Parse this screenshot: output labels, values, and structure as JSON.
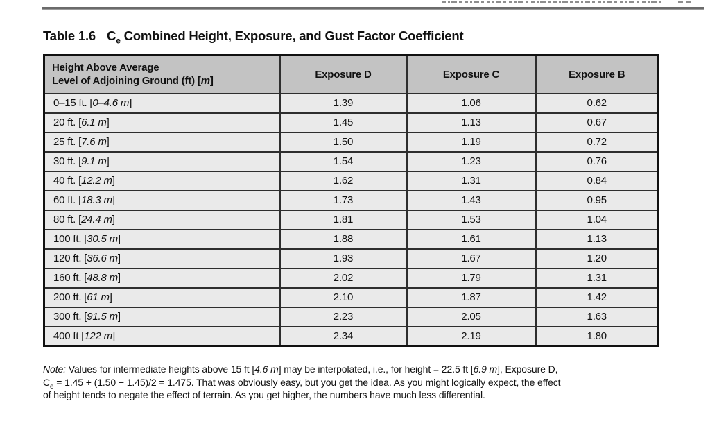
{
  "title": {
    "label": "Table 1.6",
    "symbol_base": "C",
    "symbol_sub": "e",
    "text": "Combined Height, Exposure, and Gust Factor Coefficient"
  },
  "table": {
    "header": {
      "height_line1": "Height Above Average",
      "height_line2_pre": "Level of Adjoining Ground (ft) [",
      "height_line2_italic": "m",
      "height_line2_post": "]",
      "exposure_d": "Exposure D",
      "exposure_c": "Exposure C",
      "exposure_b": "Exposure B"
    },
    "rows": [
      {
        "height_pre": "0–15 ft. [",
        "height_italic": "0–4.6 m",
        "height_post": "]",
        "d": "1.39",
        "c": "1.06",
        "b": "0.62"
      },
      {
        "height_pre": "20 ft. [",
        "height_italic": "6.1 m",
        "height_post": "]",
        "d": "1.45",
        "c": "1.13",
        "b": "0.67"
      },
      {
        "height_pre": "25 ft. [",
        "height_italic": "7.6 m",
        "height_post": "]",
        "d": "1.50",
        "c": "1.19",
        "b": "0.72"
      },
      {
        "height_pre": "30 ft. [",
        "height_italic": "9.1 m",
        "height_post": "]",
        "d": "1.54",
        "c": "1.23",
        "b": "0.76"
      },
      {
        "height_pre": "40 ft. [",
        "height_italic": "12.2 m",
        "height_post": "]",
        "d": "1.62",
        "c": "1.31",
        "b": "0.84"
      },
      {
        "height_pre": "60 ft. [",
        "height_italic": "18.3 m",
        "height_post": "]",
        "d": "1.73",
        "c": "1.43",
        "b": "0.95"
      },
      {
        "height_pre": "80 ft. [",
        "height_italic": "24.4 m",
        "height_post": "]",
        "d": "1.81",
        "c": "1.53",
        "b": "1.04"
      },
      {
        "height_pre": "100 ft. [",
        "height_italic": "30.5 m",
        "height_post": "]",
        "d": "1.88",
        "c": "1.61",
        "b": "1.13"
      },
      {
        "height_pre": "120 ft. [",
        "height_italic": "36.6 m",
        "height_post": "]",
        "d": "1.93",
        "c": "1.67",
        "b": "1.20"
      },
      {
        "height_pre": "160 ft. [",
        "height_italic": "48.8 m",
        "height_post": "]",
        "d": "2.02",
        "c": "1.79",
        "b": "1.31"
      },
      {
        "height_pre": "200 ft. [",
        "height_italic": "61 m",
        "height_post": "]",
        "d": "2.10",
        "c": "1.87",
        "b": "1.42"
      },
      {
        "height_pre": "300 ft. [",
        "height_italic": "91.5 m",
        "height_post": "]",
        "d": "2.23",
        "c": "2.05",
        "b": "1.63"
      },
      {
        "height_pre": "400 ft [",
        "height_italic": "122 m",
        "height_post": "]",
        "d": "2.34",
        "c": "2.19",
        "b": "1.80"
      }
    ]
  },
  "note": {
    "lines": [
      [
        {
          "text": "Note:",
          "style": "italic"
        },
        {
          "text": " Values for intermediate heights above 15 ft [",
          "style": "normal"
        },
        {
          "text": "4.6 m",
          "style": "italic"
        },
        {
          "text": "] may be interpolated, i.e., for height = 22.5 ft [",
          "style": "normal"
        },
        {
          "text": "6.9 m",
          "style": "italic"
        },
        {
          "text": "], Exposure D,",
          "style": "normal"
        }
      ],
      [
        {
          "text": "C",
          "style": "normal"
        },
        {
          "text": "e",
          "style": "sub"
        },
        {
          "text": " = 1.45 + (1.50 − 1.45)/2 = 1.475. That was obviously easy, but you get the idea. As you might logically expect, the effect",
          "style": "normal"
        }
      ],
      [
        {
          "text": "of height tends to negate the effect of terrain. As you get higher, the numbers have much less differential.",
          "style": "normal"
        }
      ]
    ]
  },
  "colors": {
    "page_bg": "#ffffff",
    "header_bg": "#c3c3c3",
    "row_bg": "#eaeaea",
    "cell_border": "#2e2e2e",
    "outer_border": "#111111",
    "top_rule": "#6b6b6b",
    "clipped_header_fragment": "#8f8f8f",
    "text": "#111111"
  }
}
